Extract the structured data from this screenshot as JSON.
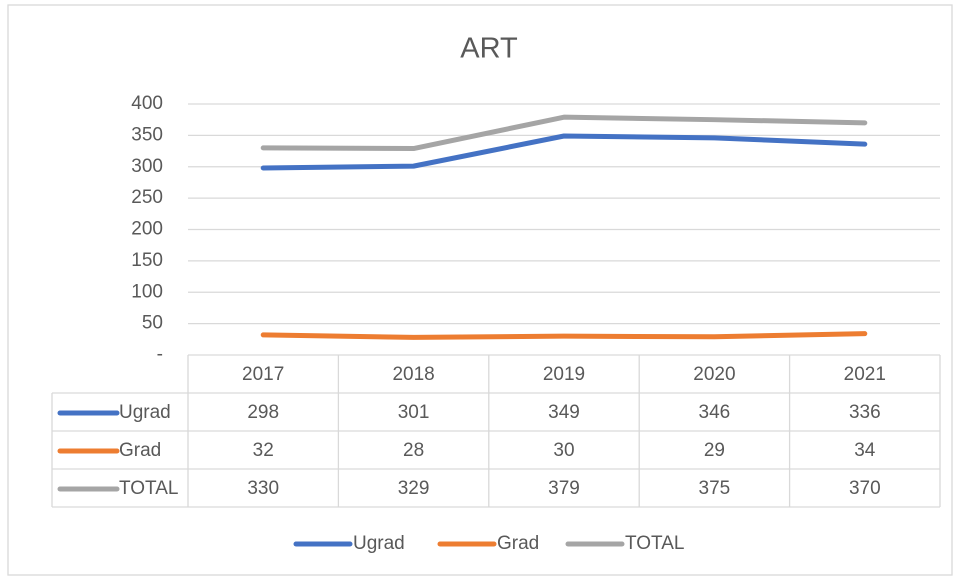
{
  "chart_data": {
    "type": "line",
    "title": "ART",
    "categories": [
      "2017",
      "2018",
      "2019",
      "2020",
      "2021"
    ],
    "series": [
      {
        "name": "Ugrad",
        "color": "#4472c4",
        "values": [
          298,
          301,
          349,
          346,
          336
        ]
      },
      {
        "name": "Grad",
        "color": "#ed7d31",
        "values": [
          32,
          28,
          30,
          29,
          34
        ]
      },
      {
        "name": "TOTAL",
        "color": "#a5a5a5",
        "values": [
          330,
          329,
          379,
          375,
          370
        ]
      }
    ],
    "ylim": [
      0,
      400
    ],
    "yticks": [
      {
        "value": 0,
        "label": "-"
      },
      50,
      100,
      150,
      200,
      250,
      300,
      350,
      400
    ],
    "grid": true,
    "legend": "bottom",
    "data_table": true
  }
}
